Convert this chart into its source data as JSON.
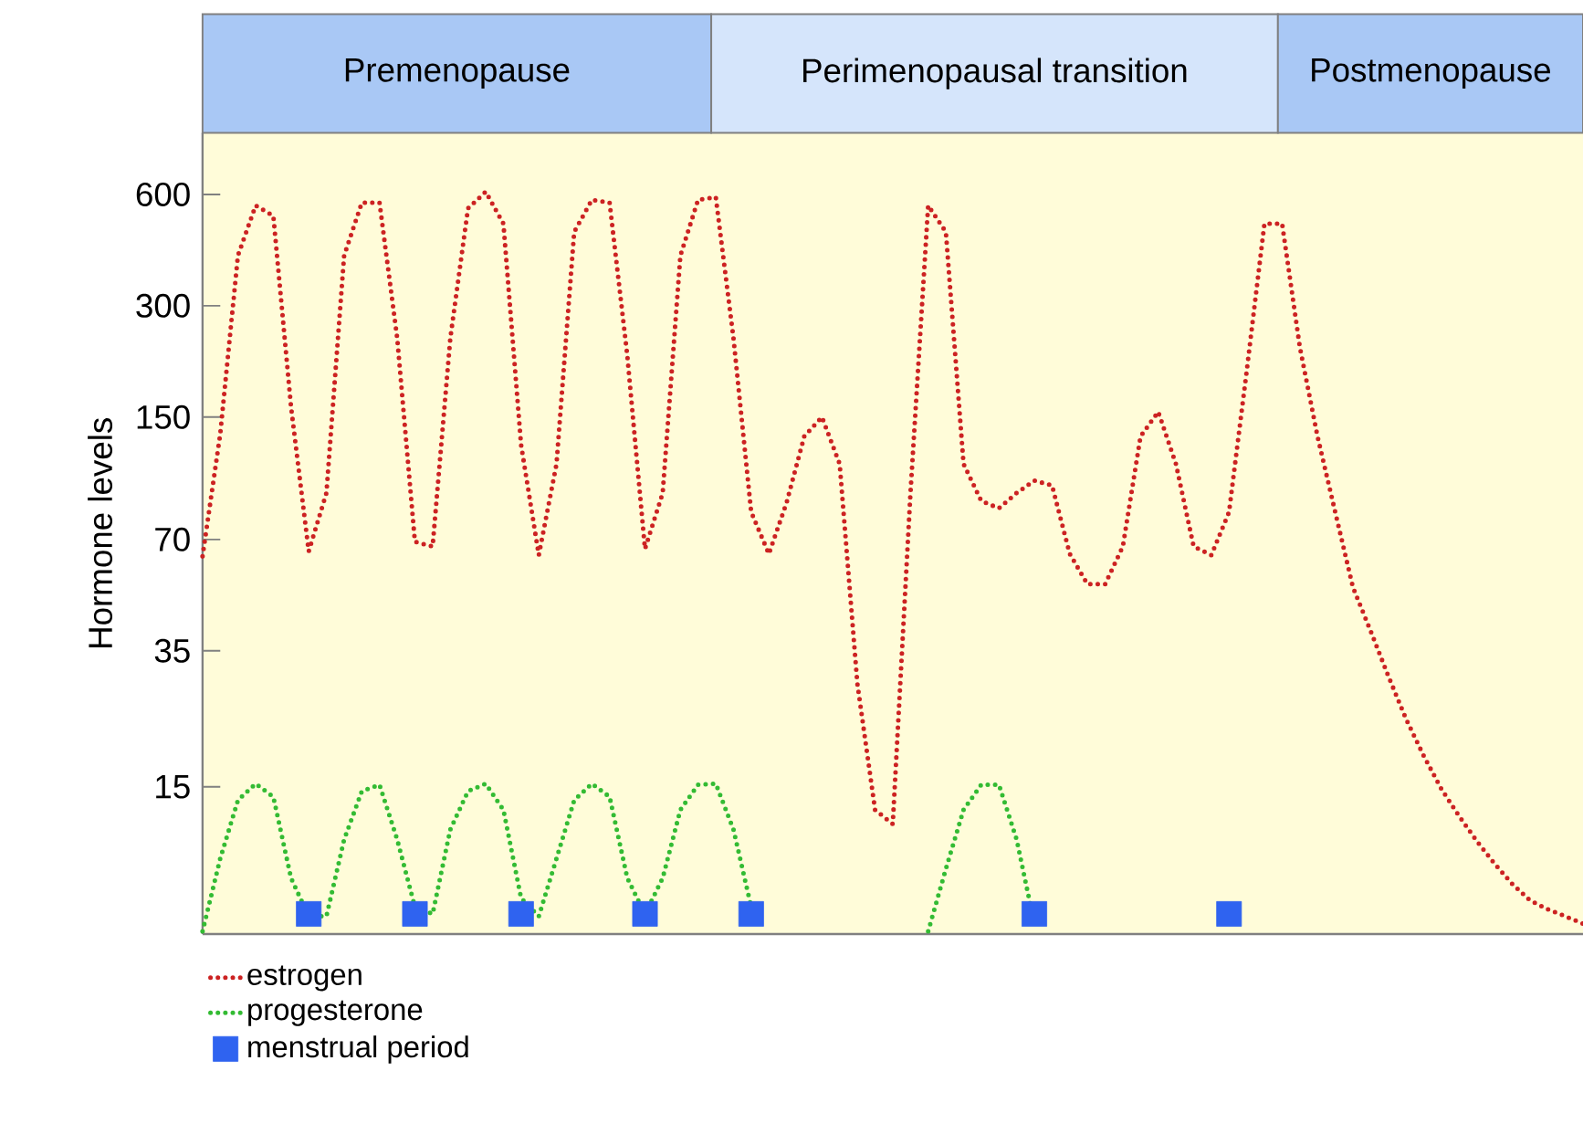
{
  "chart_data": {
    "type": "line",
    "ylabel": "Hormone levels",
    "categories": [
      null,
      null,
      null,
      null,
      null,
      null,
      null,
      null,
      null,
      null,
      null,
      null,
      null,
      null,
      null,
      null,
      null,
      null,
      null,
      null,
      null,
      null,
      null,
      null,
      null,
      null,
      null,
      null,
      null,
      null,
      null,
      null,
      null,
      null,
      null,
      null,
      null,
      null,
      null,
      null,
      null,
      null,
      null,
      null,
      null,
      null,
      null,
      null,
      null,
      null,
      null,
      null,
      null,
      null,
      null,
      null,
      null,
      null,
      null,
      null,
      null,
      null,
      null,
      null,
      null,
      null,
      null,
      null,
      null,
      null,
      null,
      null,
      null,
      null,
      null,
      null,
      null,
      null,
      null
    ],
    "series": [
      {
        "name": "estrogen",
        "color": "#cc2222",
        "line_style": "dotted",
        "marker": "none",
        "values": [
          63,
          135,
          410,
          560,
          525,
          160,
          65,
          93.5,
          410,
          570,
          570,
          245,
          69,
          67,
          245,
          550,
          610,
          500,
          126,
          63.5,
          112,
          475,
          580,
          570,
          220,
          66,
          93.5,
          410,
          580,
          590,
          245,
          83,
          64,
          88,
          133,
          150,
          112,
          28.5,
          13.0,
          11.9,
          93.5,
          560,
          475,
          112,
          89,
          85,
          93.5,
          101,
          98,
          64,
          53,
          53,
          67,
          133,
          155,
          112,
          67,
          63.5,
          83,
          200,
          500,
          500,
          232,
          133,
          83,
          52,
          39.6,
          29.9,
          22.9,
          18.2,
          14.8,
          12.5,
          10.7,
          9.3,
          8.2,
          7.4,
          7.0,
          6.7,
          6.4
        ]
      },
      {
        "name": "progesterone",
        "color": "#33bb33",
        "line_style": "dotted",
        "marker": "none",
        "values": [
          6.1,
          9.6,
          13.8,
          15.3,
          14.1,
          8.5,
          6.7,
          6.7,
          10.8,
          14.6,
          15.2,
          10.8,
          7.1,
          6.8,
          11.5,
          14.6,
          15.3,
          13.0,
          7.5,
          6.7,
          9.6,
          13.8,
          15.3,
          14.1,
          8.5,
          6.8,
          8.5,
          13.0,
          15.2,
          15.3,
          11.5,
          7.1,
          null,
          null,
          null,
          null,
          null,
          null,
          null,
          null,
          null,
          6.1,
          9.0,
          13.0,
          15.2,
          15.2,
          10.8,
          6.4,
          null,
          null,
          null,
          null,
          null,
          null,
          null,
          null,
          null,
          null,
          null,
          null,
          null,
          null,
          null,
          null,
          null,
          null,
          null,
          null,
          null,
          null,
          null,
          null,
          null,
          null,
          null,
          null,
          null,
          null,
          null
        ]
      },
      {
        "name": "menstrual period",
        "type": "scatter",
        "color": "#2f63f0",
        "marker": "square",
        "values": [
          null,
          null,
          null,
          null,
          null,
          null,
          6.8,
          null,
          null,
          null,
          null,
          null,
          6.8,
          null,
          null,
          null,
          null,
          null,
          6.8,
          null,
          null,
          null,
          null,
          null,
          null,
          6.8,
          null,
          null,
          null,
          null,
          null,
          6.8,
          null,
          null,
          null,
          null,
          null,
          null,
          null,
          null,
          null,
          null,
          null,
          null,
          null,
          null,
          null,
          6.8,
          null,
          null,
          null,
          null,
          null,
          null,
          null,
          null,
          null,
          null,
          6.8,
          null,
          null,
          null,
          null,
          null,
          null,
          null,
          null,
          null,
          null,
          null,
          null,
          null,
          null,
          null,
          null,
          null,
          null,
          null,
          null
        ]
      }
    ],
    "annotations": [
      "Premenopause",
      "Perimenopausal transition",
      "Postmenopause"
    ],
    "log": "y",
    "ylim": [
      6,
      880
    ],
    "yticks": [
      15,
      35,
      70,
      150,
      300,
      600
    ],
    "tick_labels": "y",
    "grid": false,
    "legend": "bottom left"
  }
}
